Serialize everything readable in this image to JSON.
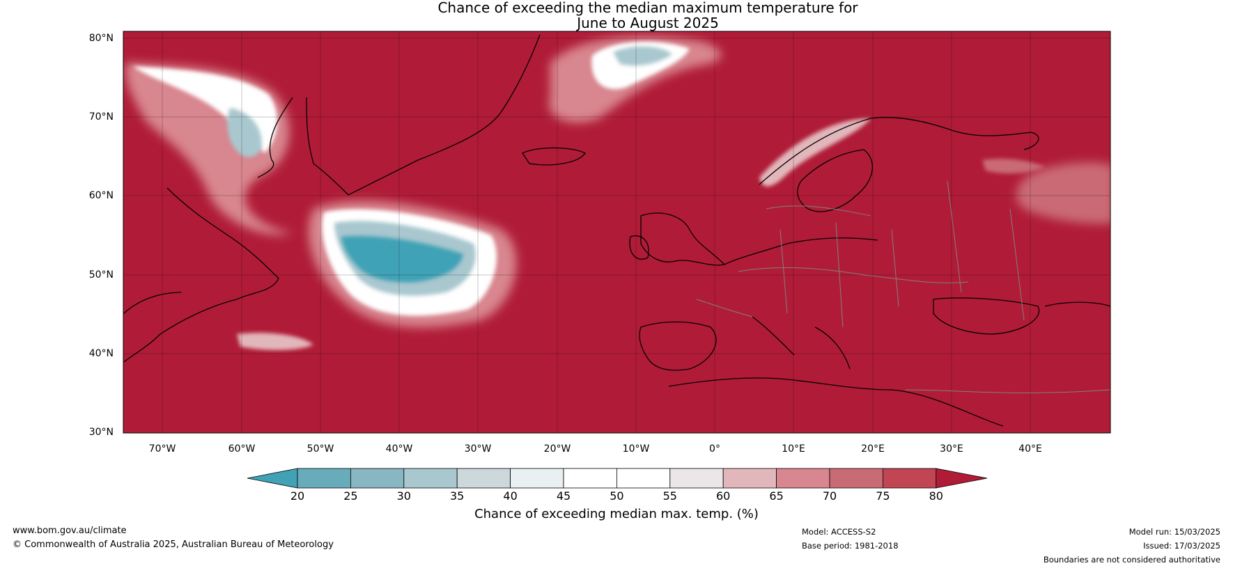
{
  "title": {
    "line1": "Chance of exceeding the median maximum temperature for",
    "line2": "June to August 2025"
  },
  "lat_ticks": [
    "80°N",
    "70°N",
    "60°N",
    "50°N",
    "40°N",
    "30°N"
  ],
  "lon_ticks": [
    "70°W",
    "60°W",
    "50°W",
    "40°W",
    "30°W",
    "20°W",
    "10°W",
    "0°",
    "10°E",
    "20°E",
    "30°E",
    "40°E"
  ],
  "map_extent": {
    "lon": [
      -75,
      50
    ],
    "lat": [
      30,
      81
    ]
  },
  "colorbar": {
    "ticks": [
      "20",
      "25",
      "30",
      "35",
      "40",
      "45",
      "50",
      "55",
      "60",
      "65",
      "70",
      "75",
      "80"
    ],
    "label": "Chance of exceeding median max. temp. (%)",
    "colors": [
      "#41a2b6",
      "#68acbb",
      "#88b6c3",
      "#a9c7cf",
      "#cdd8dc",
      "#e8f0f1",
      "#ffffff",
      "#ffffff",
      "#ebe7e8",
      "#e2b7bb",
      "#d8868f",
      "#c96b75",
      "#c14552",
      "#b01c37"
    ]
  },
  "map_colors": {
    "dominant": "#b01c37",
    "low": "#41a2b6",
    "neutral": "#ffffff"
  },
  "footer": {
    "website": "www.bom.gov.au/climate",
    "copyright": "© Commonwealth of Australia 2025, Australian Bureau of Meteorology",
    "model": "Model: ACCESS-S2",
    "base_period": "Base period: 1981-2018",
    "model_run": "Model run: 15/03/2025",
    "issued": "Issued: 17/03/2025",
    "disclaimer": "Boundaries are not considered authoritative"
  }
}
